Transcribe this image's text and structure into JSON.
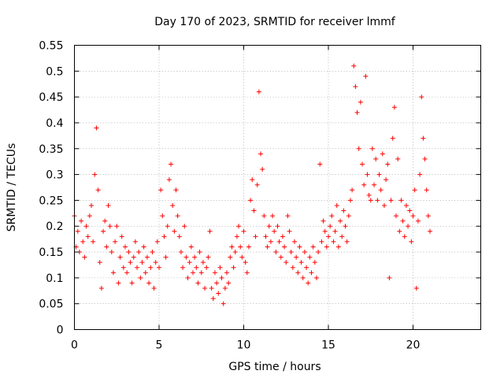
{
  "chart_data": {
    "type": "scatter",
    "title": "Day 170 of 2023, SRMTID for receiver lmmf",
    "xlabel": "GPS time / hours",
    "ylabel": "SRMTID / TECUs",
    "xlim": [
      0,
      24
    ],
    "ylim": [
      0,
      0.55
    ],
    "x_ticks": [
      0,
      5,
      10,
      15,
      20
    ],
    "x_tick_labels": [
      "0",
      "5",
      "10",
      "15",
      "20"
    ],
    "y_ticks": [
      0,
      0.05,
      0.1,
      0.15,
      0.2,
      0.25,
      0.3,
      0.35,
      0.4,
      0.45,
      0.5,
      0.55
    ],
    "y_tick_labels": [
      "0",
      "0.05",
      "0.1",
      "0.15",
      "0.2",
      "0.25",
      "0.3",
      "0.35",
      "0.4",
      "0.45",
      "0.5",
      "0.55"
    ],
    "grid": true,
    "marker": "plus",
    "series_color": "#ff0000",
    "points_step_hours": 0.1,
    "series": [
      {
        "name": "SRMTID",
        "x_start": 0.0,
        "y": [
          0.22,
          0.16,
          0.19,
          0.15,
          0.21,
          0.17,
          0.14,
          0.2,
          0.18,
          0.22,
          0.24,
          0.17,
          0.3,
          0.39,
          0.27,
          0.13,
          0.08,
          0.19,
          0.21,
          0.16,
          0.24,
          0.2,
          0.15,
          0.11,
          0.17,
          0.2,
          0.09,
          0.14,
          0.18,
          0.12,
          0.16,
          0.11,
          0.15,
          0.13,
          0.09,
          0.14,
          0.17,
          0.12,
          0.15,
          0.1,
          0.13,
          0.16,
          0.11,
          0.14,
          0.09,
          0.12,
          0.15,
          0.08,
          0.13,
          0.17,
          0.12,
          0.27,
          0.22,
          0.18,
          0.14,
          0.2,
          0.29,
          0.32,
          0.24,
          0.19,
          0.27,
          0.22,
          0.18,
          0.15,
          0.12,
          0.2,
          0.14,
          0.1,
          0.13,
          0.16,
          0.11,
          0.14,
          0.12,
          0.09,
          0.15,
          0.11,
          0.13,
          0.08,
          0.12,
          0.14,
          0.19,
          0.08,
          0.06,
          0.11,
          0.09,
          0.07,
          0.12,
          0.1,
          0.05,
          0.08,
          0.11,
          0.09,
          0.14,
          0.16,
          0.12,
          0.15,
          0.18,
          0.2,
          0.16,
          0.14,
          0.19,
          0.13,
          0.11,
          0.16,
          0.25,
          0.29,
          0.23,
          0.18,
          0.28,
          0.46,
          0.34,
          0.31,
          0.22,
          0.18,
          0.16,
          0.2,
          0.17,
          0.22,
          0.19,
          0.15,
          0.2,
          0.17,
          0.14,
          0.18,
          0.16,
          0.13,
          0.22,
          0.19,
          0.15,
          0.12,
          0.17,
          0.14,
          0.11,
          0.16,
          0.13,
          0.1,
          0.15,
          0.12,
          0.09,
          0.14,
          0.11,
          0.16,
          0.13,
          0.1,
          0.15,
          0.32,
          0.17,
          0.21,
          0.19,
          0.16,
          0.18,
          0.2,
          0.22,
          0.17,
          0.19,
          0.24,
          0.16,
          0.21,
          0.18,
          0.23,
          0.2,
          0.17,
          0.22,
          0.25,
          0.27,
          0.51,
          0.47,
          0.42,
          0.35,
          0.44,
          0.32,
          0.28,
          0.49,
          0.3,
          0.26,
          0.25,
          0.35,
          0.28,
          0.33,
          0.25,
          0.3,
          0.27,
          0.34,
          0.24,
          0.29,
          0.32,
          0.1,
          0.25,
          0.37,
          0.43,
          0.22,
          0.33,
          0.19,
          0.25,
          0.21,
          0.18,
          0.24,
          0.2,
          0.23,
          0.17,
          0.22,
          0.27,
          0.08,
          0.21,
          0.3,
          0.45,
          0.37,
          0.33,
          0.27,
          0.22,
          0.19
        ]
      }
    ]
  }
}
